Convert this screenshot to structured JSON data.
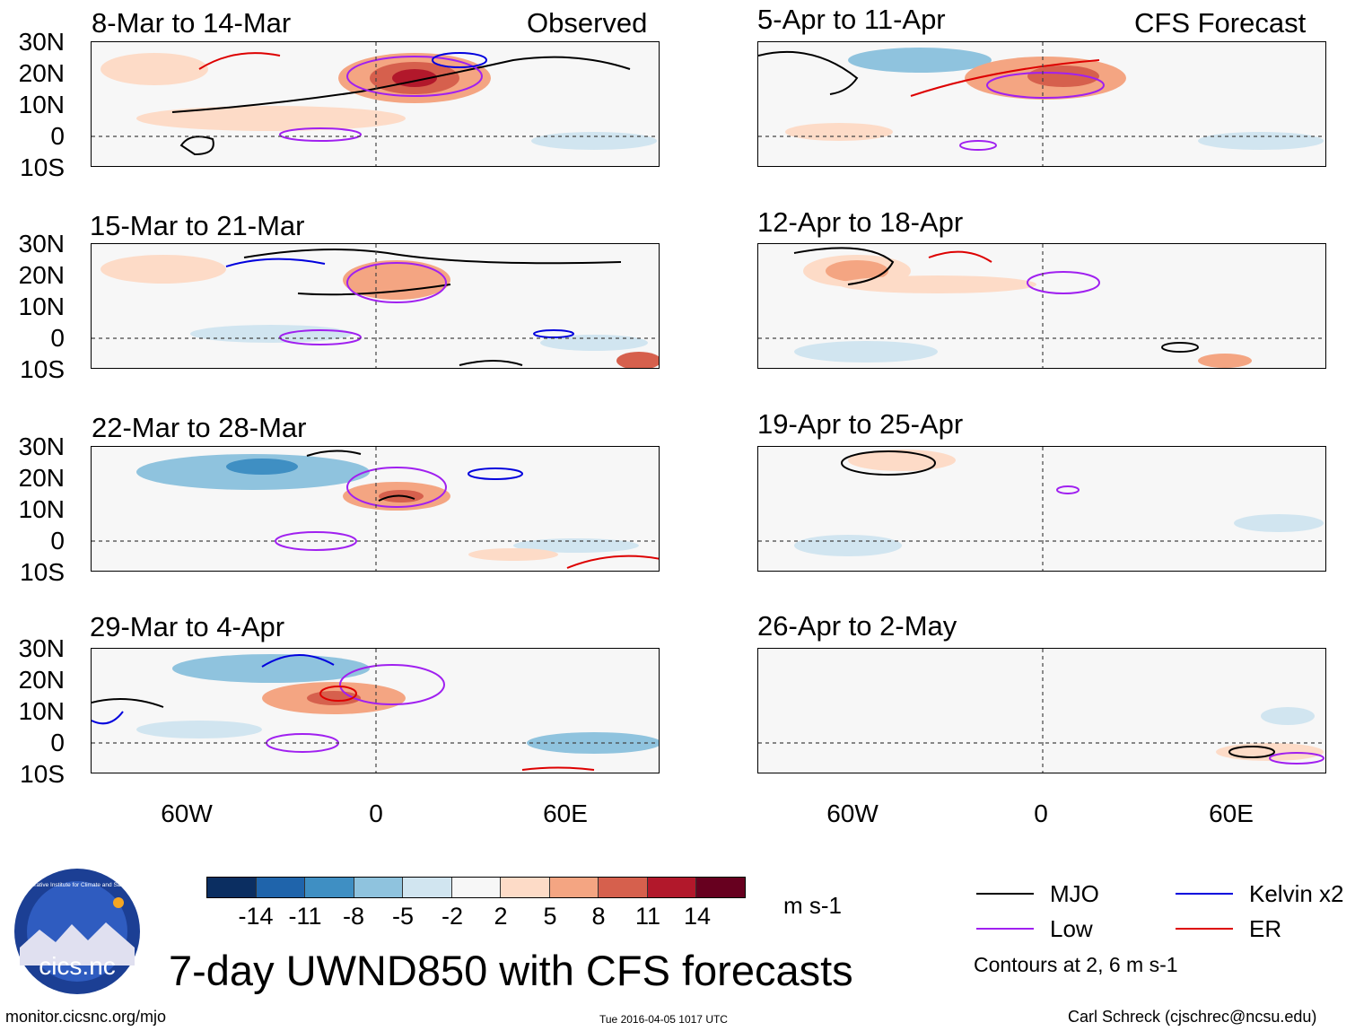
{
  "headers": {
    "left": "Observed",
    "right": "CFS Forecast"
  },
  "panels": {
    "observed": [
      {
        "title": "8-Mar to 14-Mar"
      },
      {
        "title": "15-Mar to 21-Mar"
      },
      {
        "title": "22-Mar to 28-Mar"
      },
      {
        "title": "29-Mar to 4-Apr"
      }
    ],
    "forecast": [
      {
        "title": "5-Apr to 11-Apr"
      },
      {
        "title": "12-Apr to 18-Apr"
      },
      {
        "title": "19-Apr to 25-Apr"
      },
      {
        "title": "26-Apr to 2-May"
      }
    ]
  },
  "latitude_labels": [
    "30N",
    "20N",
    "10N",
    "0",
    "10S"
  ],
  "longitude_labels": [
    "60W",
    "0",
    "60E"
  ],
  "colorbar": {
    "colors": [
      "#0b2e61",
      "#1f64ab",
      "#3f8fc3",
      "#8fc3de",
      "#d1e5f0",
      "#f7f7f7",
      "#fddbc7",
      "#f4a582",
      "#d6604d",
      "#b2182b",
      "#67001f"
    ],
    "ticks": [
      "-14",
      "-11",
      "-8",
      "-5",
      "-2",
      "2",
      "5",
      "8",
      "11",
      "14"
    ],
    "units": "m s-1"
  },
  "legend": {
    "items": [
      {
        "label": "MJO",
        "color": "#000000"
      },
      {
        "label": "Kelvin x2",
        "color": "#0000dd"
      },
      {
        "label": "Low",
        "color": "#a020f0"
      },
      {
        "label": "ER",
        "color": "#dd0000"
      }
    ],
    "contours_note": "Contours at 2, 6 m s-1"
  },
  "main_title": "7-day UWND850 with CFS forecasts",
  "logo": {
    "text": "cics.nc",
    "ring_text": "Cooperative Institute for Climate and Satellites"
  },
  "footer": {
    "website": "monitor.cicsnc.org/mjo",
    "timestamp": "Tue 2016-04-05 1017 UTC",
    "author": "Carl Schreck (cjschrec@ncsu.edu)"
  }
}
